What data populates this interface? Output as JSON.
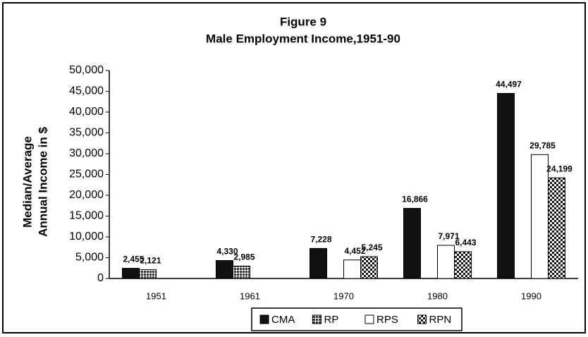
{
  "chart_data": {
    "type": "bar",
    "title": [
      "Figure 9",
      "Male Employment Income,1951-90"
    ],
    "ylabel": [
      "Median/Average",
      "Annual Income in $"
    ],
    "categories": [
      "1951",
      "1961",
      "1970",
      "1980",
      "1990"
    ],
    "series": [
      {
        "name": "CMA",
        "color": "#111111",
        "pattern": "none",
        "values": [
          2455,
          4330,
          7228,
          16866,
          44497
        ],
        "value_labels": [
          "2,455",
          "4,330",
          "7,228",
          "16,866",
          "44,497"
        ]
      },
      {
        "name": "RP",
        "color": "#555555",
        "pattern": "grid",
        "values": [
          2121,
          2985,
          null,
          null,
          null
        ],
        "value_labels": [
          "2,121",
          "2,985",
          null,
          null,
          null
        ]
      },
      {
        "name": "RPS",
        "color": "#ffffff",
        "pattern": "none",
        "values": [
          null,
          null,
          4452,
          7971,
          29785
        ],
        "value_labels": [
          null,
          null,
          "4,452",
          "7,971",
          "29,785"
        ]
      },
      {
        "name": "RPN",
        "color": "#222222",
        "pattern": "checker",
        "values": [
          null,
          null,
          5245,
          6443,
          24199
        ],
        "value_labels": [
          null,
          null,
          "5,245",
          "6,443",
          "24,199"
        ]
      }
    ],
    "ylim": [
      0,
      50000
    ],
    "yticks": [
      0,
      {
        "value": 5000,
        "label": "5,000"
      },
      {
        "value": 10000,
        "label": "10,000"
      },
      {
        "value": 15000,
        "label": "15,000"
      },
      {
        "value": 20000,
        "label": "20,000"
      },
      {
        "value": 25000,
        "label": "25,000"
      },
      {
        "value": 30000,
        "label": "30,000"
      },
      {
        "value": 35000,
        "label": "35,000"
      },
      {
        "value": 40000,
        "label": "40,000"
      },
      {
        "value": 45000,
        "label": "45,000"
      },
      {
        "value": 50000,
        "label": "50,000"
      }
    ],
    "grid": false,
    "legend": "bottom"
  }
}
